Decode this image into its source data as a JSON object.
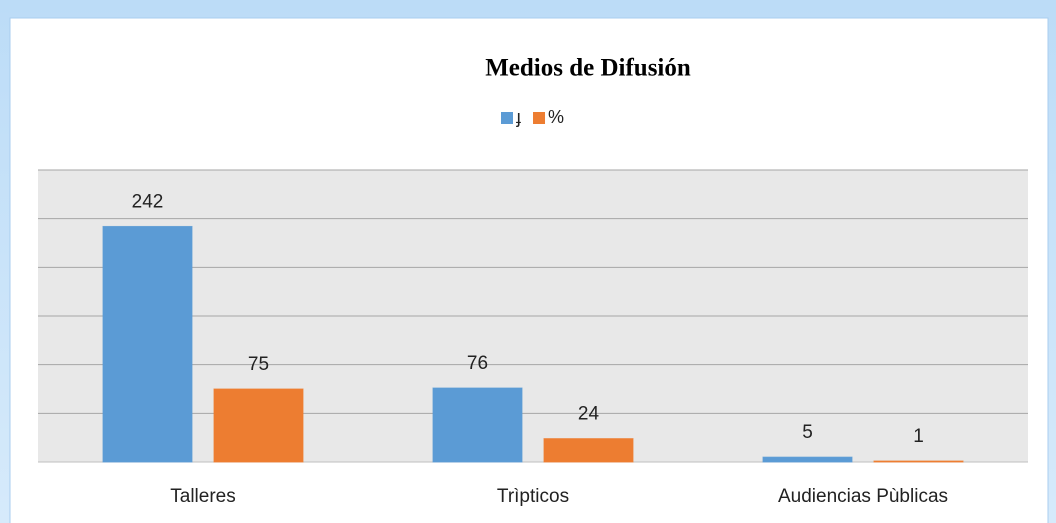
{
  "chart_data": {
    "type": "bar",
    "title": "Medios de Difusión",
    "categories": [
      "Talleres",
      "Trìpticos",
      "Audiencias Pùblicas"
    ],
    "series": [
      {
        "name": "ɟ",
        "color": "#5b9bd5",
        "values": [
          242,
          76,
          5
        ]
      },
      {
        "name": "%",
        "color": "#ed7d31",
        "values": [
          75,
          24,
          1
        ]
      }
    ],
    "ylim": [
      0,
      300
    ],
    "yticks": [
      0,
      50,
      100,
      150,
      200,
      250,
      300
    ],
    "grid": true,
    "legend": "top"
  }
}
